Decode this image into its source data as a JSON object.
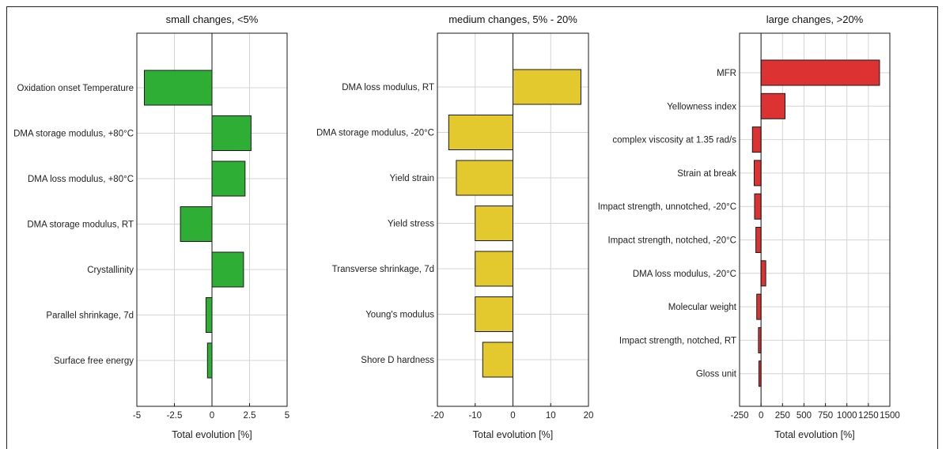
{
  "chart_data": [
    {
      "type": "bar",
      "orientation": "horizontal",
      "title": "small changes, <5%",
      "xlabel": "Total evolution [%]",
      "xlim": [
        -5,
        5
      ],
      "xticks": [
        -5,
        -2.5,
        0,
        2.5,
        5
      ],
      "xtick_labels": [
        "-5",
        "-2.5",
        "0",
        "2.5",
        "5"
      ],
      "grid": true,
      "color": "#2fae35",
      "categories": [
        "Oxidation onset Temperature",
        "DMA storage modulus, +80°C",
        "DMA loss modulus, +80°C",
        "DMA storage modulus, RT",
        "Crystallinity",
        "Parallel shrinkage, 7d",
        "Surface free energy"
      ],
      "values": [
        -4.5,
        2.6,
        2.2,
        -2.1,
        2.1,
        -0.4,
        -0.3
      ]
    },
    {
      "type": "bar",
      "orientation": "horizontal",
      "title": "medium changes, 5% - 20%",
      "xlabel": "Total evolution [%]",
      "xlim": [
        -20,
        20
      ],
      "xticks": [
        -20,
        -10,
        0,
        10,
        20
      ],
      "xtick_labels": [
        "-20",
        "-10",
        "0",
        "10",
        "20"
      ],
      "grid": true,
      "color": "#e4c92e",
      "categories": [
        "DMA loss modulus, RT",
        "DMA storage modulus, -20°C",
        "Yield strain",
        "Yield stress",
        "Transverse shrinkage, 7d",
        "Young's modulus",
        "Shore D hardness"
      ],
      "values": [
        18,
        -17,
        -15,
        -10,
        -10,
        -10,
        -8
      ]
    },
    {
      "type": "bar",
      "orientation": "horizontal",
      "title": "large changes, >20%",
      "xlabel": "Total evolution [%]",
      "xlim": [
        -250,
        1500
      ],
      "xticks": [
        -250,
        0,
        250,
        500,
        750,
        1000,
        1250,
        1500
      ],
      "xtick_labels": [
        "-250",
        "0",
        "250",
        "500",
        "750",
        "1000",
        "1250",
        "1500"
      ],
      "grid": true,
      "color": "#dc3232",
      "categories": [
        "MFR",
        "Yellowness index",
        "complex viscosity at 1.35 rad/s",
        "Strain at break",
        "Impact strength, unnotched, -20°C",
        "Impact strength, notched, -20°C",
        "DMA loss modulus, -20°C",
        "Molecular weight",
        "Impact strength, notched, RT",
        "Gloss unit"
      ],
      "values": [
        1380,
        280,
        -100,
        -80,
        -75,
        -60,
        55,
        -50,
        -30,
        -25
      ]
    }
  ]
}
